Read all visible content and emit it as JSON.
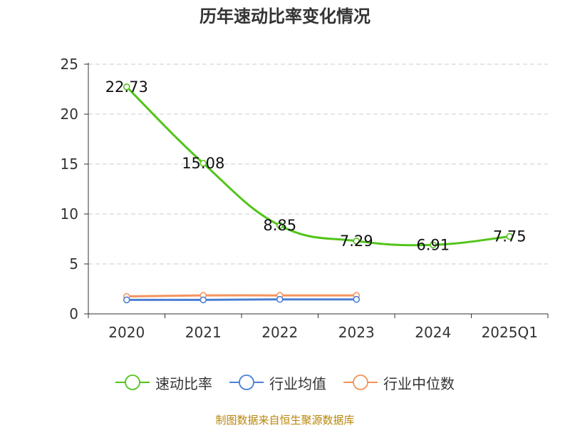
{
  "chart_data": {
    "type": "line",
    "title": "历年速动比率变化情况",
    "categories": [
      "2020",
      "2021",
      "2022",
      "2023",
      "2024",
      "2025Q1"
    ],
    "ylim": [
      0,
      25
    ],
    "yticks": [
      "0",
      "5",
      "10",
      "15",
      "20",
      "25"
    ],
    "grid": true,
    "legend_position": "bottom",
    "series": [
      {
        "name": "速动比率",
        "color": "#52c41a",
        "values": [
          22.73,
          15.08,
          8.85,
          7.29,
          6.91,
          7.75
        ],
        "labels": [
          "22.73",
          "15.08",
          "8.85",
          "7.29",
          "6.91",
          "7.75"
        ],
        "show_labels": true
      },
      {
        "name": "行业均值",
        "color": "#4a7fd4",
        "values": [
          1.4,
          1.4,
          1.45,
          1.45,
          null,
          null
        ],
        "show_labels": false
      },
      {
        "name": "行业中位数",
        "color": "#f5935e",
        "values": [
          1.75,
          1.85,
          1.85,
          1.85,
          null,
          null
        ],
        "show_labels": false
      }
    ]
  },
  "source_note": "制图数据来自恒生聚源数据库"
}
